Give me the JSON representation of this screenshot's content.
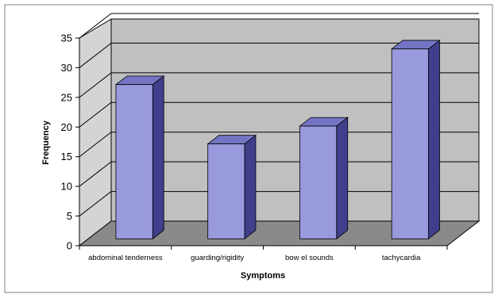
{
  "chart_data": {
    "type": "bar",
    "title": "",
    "xlabel": "Symptoms",
    "ylabel": "Frequency",
    "categories": [
      "abdominal tenderness",
      "guarding/rigidity",
      "bow el sounds",
      "tachycardia"
    ],
    "values": [
      26,
      16,
      19,
      32
    ],
    "ylim": [
      0,
      35
    ],
    "yticks": [
      0,
      5,
      10,
      15,
      20,
      25,
      30,
      35
    ],
    "grid": true,
    "legend": "none",
    "style": "3d-column",
    "colors": {
      "bar_front": "#9999dd",
      "bar_top": "#7474c4",
      "bar_side": "#3f3f8c",
      "back_wall": "#c0c0c0",
      "side_wall": "#d4d4d4",
      "floor": "#8a8a8a",
      "gridline": "#000000",
      "frame": "#808080"
    }
  }
}
